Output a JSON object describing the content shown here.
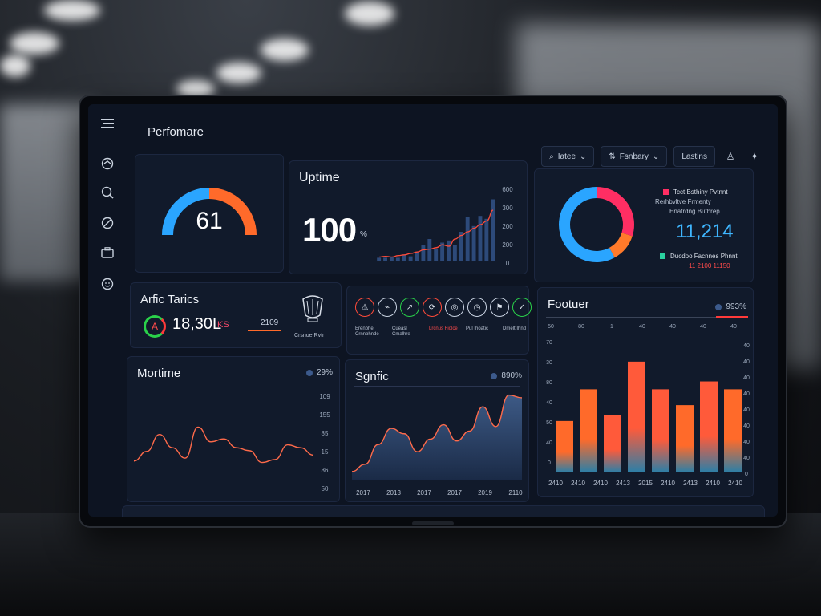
{
  "app": {
    "title": "Perfomare"
  },
  "toolbar": {
    "search_label": "Iatee",
    "filter_label": "Fsnbary",
    "tab_label": "Lastlns"
  },
  "sidebar": {
    "icons": [
      "menu-icon",
      "home-icon",
      "search-icon",
      "compass-icon",
      "briefcase-icon",
      "user-icon"
    ]
  },
  "gauge": {
    "value": "61",
    "fill_fraction": 0.61,
    "colors": {
      "start": "#2aa5ff",
      "end": "#ff6a2a"
    }
  },
  "uptime": {
    "title": "Uptime",
    "value": "100",
    "unit": "%",
    "ticks": [
      "600",
      "300",
      "200",
      "200",
      "0"
    ],
    "bars": [
      4,
      4,
      5,
      4,
      8,
      6,
      12,
      22,
      30,
      16,
      25,
      28,
      22,
      40,
      60,
      48,
      62,
      58,
      85
    ],
    "line": [
      5,
      6,
      5,
      7,
      8,
      10,
      12,
      15,
      16,
      18,
      22,
      20,
      30,
      35,
      40,
      45,
      50,
      55,
      70
    ]
  },
  "donut": {
    "value": "11,214",
    "legend_top": [
      "Tcct Bsthiny Pvtnnt",
      "Rerhbvltve Frmenty",
      "Enatrdng Buthrep"
    ],
    "legend_bottom": [
      "Ducdoo Facnnes Phnnt",
      "11 2100 11150"
    ],
    "slices": [
      {
        "fraction": 0.3,
        "color": "#ff2e63"
      },
      {
        "fraction": 0.12,
        "color": "#ff7a2a"
      },
      {
        "fraction": 0.58,
        "color": "#2aa5ff"
      }
    ]
  },
  "traffic": {
    "title": "Arfic Tarics",
    "letter": "A",
    "value": "18,30L",
    "unit": "KS",
    "sub": "2109",
    "caption": "Crsnoe Rvtr"
  },
  "icons_row": {
    "items": [
      "alert-icon",
      "chart-icon",
      "share-icon",
      "sync-icon",
      "target-icon",
      "clock-icon",
      "flag-icon",
      "check-icon"
    ],
    "labels": [
      "Erenbhe Crnnbhnde",
      "Cueasl Cmalhre",
      "Lrcnus Fiolce",
      "Pul Ihoatic",
      "Dmelt Ihnd"
    ]
  },
  "footuer": {
    "title": "Footuer",
    "badge": "993%",
    "top_ticks": [
      "50",
      "80",
      "1",
      "40",
      "40",
      "40",
      "40"
    ],
    "ticks": [
      "70",
      "30",
      "80",
      "40",
      "50",
      "40",
      "0"
    ],
    "right_ticks": [
      "40",
      "40",
      "40",
      "40",
      "40",
      "40",
      "40",
      "40",
      "0"
    ],
    "x_labels": [
      "2410",
      "2410",
      "2410",
      "2413",
      "2015",
      "2410",
      "2413",
      "2410",
      "2410"
    ],
    "values": [
      26,
      42,
      29,
      56,
      42,
      34,
      46,
      42
    ],
    "colors": [
      "#ff6a2a",
      "#ff6a2a",
      "#ff5a3a",
      "#ff5a3a",
      "#ff5a3a",
      "#ff6a2a",
      "#ff5a3a",
      "#ff6a2a"
    ]
  },
  "mortime": {
    "title": "Mortime",
    "badge": "29%",
    "ticks": [
      "109",
      "155",
      "85",
      "15",
      "86",
      "50"
    ],
    "points": [
      22,
      35,
      58,
      40,
      26,
      68,
      48,
      52,
      40,
      36,
      20,
      24,
      44,
      40,
      30
    ]
  },
  "sgnfic": {
    "title": "Sgnfic",
    "badge": "890%",
    "x_labels": [
      "2017",
      "2013",
      "2017",
      "2017",
      "2019",
      "2110"
    ],
    "points": [
      10,
      18,
      40,
      58,
      52,
      32,
      46,
      62,
      44,
      55,
      82,
      60,
      95,
      92
    ]
  }
}
